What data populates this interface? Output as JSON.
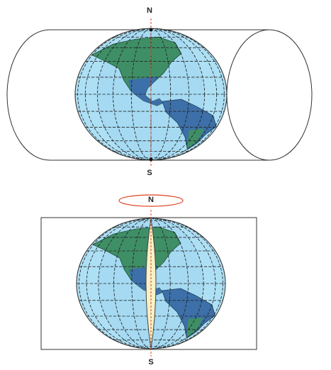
{
  "top_diagram": {
    "north_label": "N",
    "south_label": "S"
  },
  "bottom_diagram": {
    "north_label": "N",
    "south_label": "S"
  }
}
